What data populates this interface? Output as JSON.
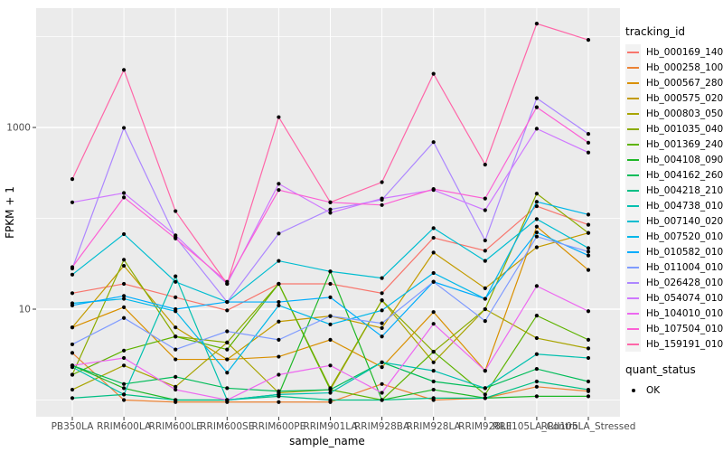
{
  "figure": {
    "background": "#FFFFFF",
    "panel_background": "#EBEBEB",
    "grid_color": "#FFFFFF",
    "axis_text_color": "#4D4D4D",
    "point_color": "#000000"
  },
  "axes": {
    "x_title": "sample_name",
    "y_title": "FPKM + 1"
  },
  "legend": {
    "tracking_title": "tracking_id",
    "quant_title": "quant_status",
    "quant_items": [
      {
        "label": "OK",
        "shape": "point"
      }
    ]
  },
  "chart_data": {
    "type": "line",
    "title": "",
    "xlabel": "sample_name",
    "ylabel": "FPKM + 1",
    "x_type": "categorical",
    "y_scale": "log10",
    "y_ticks": [
      1000,
      10
    ],
    "y_minor_gridlines": [
      10000,
      100,
      1
    ],
    "ylim": [
      0.65,
      20000
    ],
    "grid": true,
    "legend_position": "right",
    "point_marker": "black-dot-quant-status-OK",
    "categories": [
      "PB350LA",
      "RRIM600LA",
      "RRIM600LE",
      "RRIM600SE",
      "RRIM600PE",
      "RRIM901LA",
      "RRIM928BA",
      "RRIM928LA",
      "RRIM928LE",
      "RRII105LA_Control",
      "RRII105LA_Stressed"
    ],
    "series": [
      {
        "name": "Hb_000169_140",
        "color": "#F8766D",
        "values": [
          15,
          19,
          13.5,
          9.7,
          19,
          19,
          15,
          61,
          44,
          136,
          85
        ]
      },
      {
        "name": "Hb_000258_100",
        "color": "#EB8335",
        "values": [
          3.3,
          1.0,
          0.95,
          0.95,
          0.95,
          0.95,
          1.5,
          1.0,
          1.05,
          1.4,
          1.25
        ]
      },
      {
        "name": "Hb_000567_280",
        "color": "#D99000",
        "values": [
          6.3,
          10.5,
          2.8,
          2.8,
          3.0,
          4.6,
          2.3,
          9.3,
          2.1,
          81,
          27
        ]
      },
      {
        "name": "Hb_000575_020",
        "color": "#C39B00",
        "values": [
          6.3,
          30,
          6.3,
          2.8,
          7.3,
          8.4,
          6.2,
          42,
          17,
          48,
          69
        ]
      },
      {
        "name": "Hb_000803_050",
        "color": "#A8A400",
        "values": [
          1.3,
          2.4,
          1.4,
          4.3,
          1.2,
          1.3,
          12.5,
          2.6,
          10,
          4.8,
          3.7
        ]
      },
      {
        "name": "Hb_001035_040",
        "color": "#8BAB00",
        "values": [
          1.9,
          35,
          5.0,
          4.3,
          19,
          1.35,
          12.5,
          3.4,
          10,
          187,
          69
        ]
      },
      {
        "name": "Hb_001369_240",
        "color": "#5EB300",
        "values": [
          1.9,
          3.5,
          5.0,
          3.6,
          19,
          1.3,
          1.0,
          3.4,
          1.15,
          8.5,
          4.6
        ]
      },
      {
        "name": "Hb_004108_090",
        "color": "#1FB828",
        "values": [
          2.4,
          1.35,
          1.0,
          1.0,
          1.15,
          26,
          1.0,
          1.3,
          1.05,
          1.1,
          1.1
        ]
      },
      {
        "name": "Hb_004162_260",
        "color": "#00BC59",
        "values": [
          2.4,
          1.5,
          1.8,
          1.35,
          1.25,
          1.3,
          2.6,
          1.6,
          1.35,
          2.2,
          1.6
        ]
      },
      {
        "name": "Hb_004218_210",
        "color": "#00BF85",
        "values": [
          1.05,
          1.15,
          1.0,
          1.0,
          1.1,
          1.0,
          1.0,
          1.05,
          1.05,
          1.6,
          1.3
        ]
      },
      {
        "name": "Hb_004738_010",
        "color": "#00C0AF",
        "values": [
          2.3,
          1.15,
          23,
          1.0,
          1.15,
          1.2,
          2.6,
          2.1,
          1.35,
          3.2,
          2.9
        ]
      },
      {
        "name": "Hb_007140_020",
        "color": "#00BDD0",
        "values": [
          24,
          67,
          20,
          12,
          34,
          26,
          22,
          78,
          34,
          98,
          47
        ]
      },
      {
        "name": "Hb_007520_010",
        "color": "#00B7E9",
        "values": [
          11.6,
          13,
          9.5,
          2.0,
          11,
          6.8,
          9.7,
          25,
          13,
          152,
          110
        ]
      },
      {
        "name": "Hb_010582_010",
        "color": "#00ACFC",
        "values": [
          11,
          14,
          10,
          12,
          12,
          13.5,
          5,
          20,
          13,
          70,
          39
        ]
      },
      {
        "name": "Hb_011004_010",
        "color": "#7F9BFF",
        "values": [
          4.1,
          8,
          3.6,
          5.7,
          4.6,
          8.4,
          7,
          20,
          7.4,
          63,
          43
        ]
      },
      {
        "name": "Hb_026428_010",
        "color": "#AD87FF",
        "values": [
          28,
          990,
          62,
          12,
          68,
          125,
          160,
          690,
          57,
          2100,
          850
        ]
      },
      {
        "name": "Hb_054074_010",
        "color": "#CF78FF",
        "values": [
          150,
          190,
          65,
          19,
          240,
          115,
          165,
          205,
          123,
          970,
          530
        ]
      },
      {
        "name": "Hb_104010_010",
        "color": "#ED68F0",
        "values": [
          2.4,
          2.9,
          1.3,
          1.0,
          1.9,
          2.4,
          1.2,
          6.9,
          2.1,
          18,
          9.5
        ]
      },
      {
        "name": "Hb_107504_010",
        "color": "#FC61D5",
        "values": [
          29,
          170,
          60,
          20,
          205,
          150,
          140,
          210,
          165,
          1670,
          680
        ]
      },
      {
        "name": "Hb_159191_010",
        "color": "#FF66A8",
        "values": [
          270,
          4300,
          120,
          19,
          1300,
          150,
          250,
          3900,
          390,
          13900,
          9200
        ]
      }
    ]
  }
}
